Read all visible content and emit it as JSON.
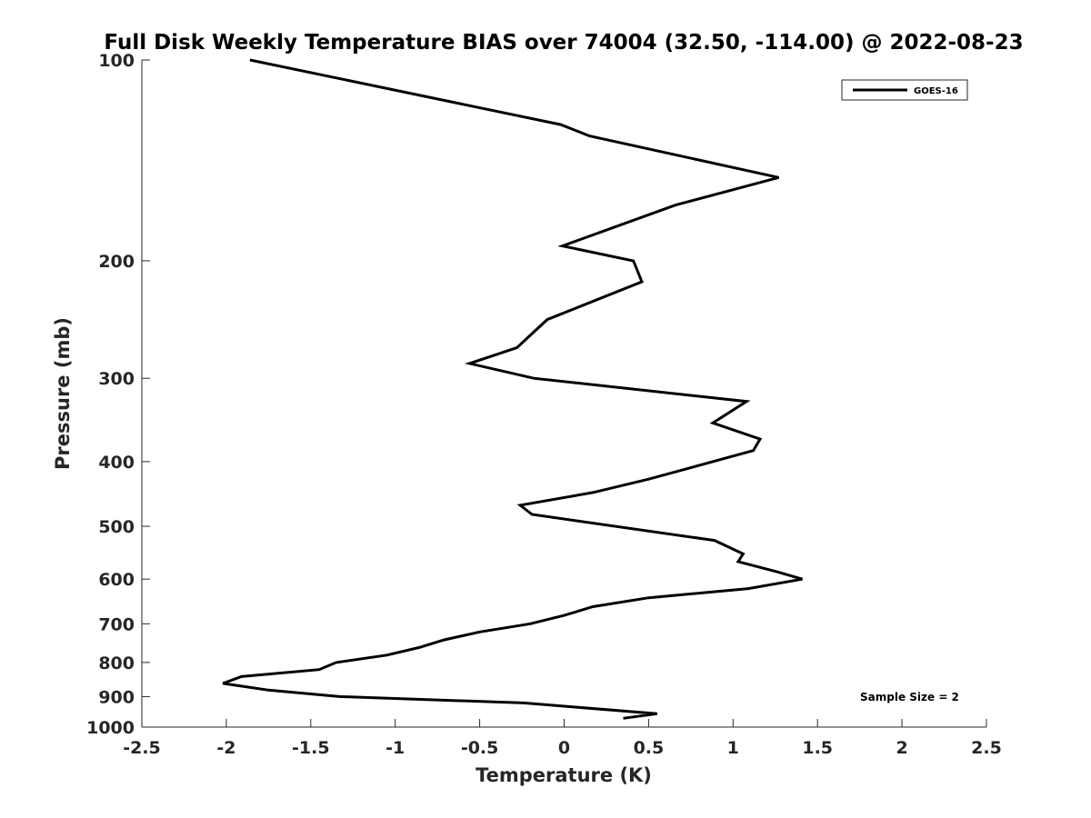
{
  "chart_data": {
    "type": "line",
    "title": "Full Disk Weekly Temperature BIAS over 74004 (32.50, -114.00) @ 2022-08-23",
    "xlabel": "Temperature (K)",
    "ylabel": "Pressure (mb)",
    "xlim": [
      -2.5,
      2.5
    ],
    "ylim": [
      100,
      1000
    ],
    "y_scale": "log",
    "y_reversed": true,
    "grid": false,
    "legend_position": "top-right",
    "x_ticks": [
      "-2.5",
      "-2",
      "-1.5",
      "-1",
      "-0.5",
      "0",
      "0.5",
      "1",
      "1.5",
      "2",
      "2.5"
    ],
    "x_tick_values": [
      -2.5,
      -2,
      -1.5,
      -1,
      -0.5,
      0,
      0.5,
      1,
      1.5,
      2,
      2.5
    ],
    "y_ticks": [
      "100",
      "200",
      "300",
      "400",
      "500",
      "600",
      "700",
      "800",
      "900",
      "1000"
    ],
    "y_tick_values": [
      100,
      200,
      300,
      400,
      500,
      600,
      700,
      800,
      900,
      1000
    ],
    "annotation": "Sample Size = 2",
    "series": [
      {
        "name": "GOES-16",
        "color": "#000000",
        "points": [
          {
            "x": -1.86,
            "p": 100
          },
          {
            "x": -0.02,
            "p": 125
          },
          {
            "x": 0.15,
            "p": 130
          },
          {
            "x": 1.27,
            "p": 150
          },
          {
            "x": 0.66,
            "p": 165
          },
          {
            "x": -0.01,
            "p": 190
          },
          {
            "x": 0.41,
            "p": 200
          },
          {
            "x": 0.46,
            "p": 215
          },
          {
            "x": -0.1,
            "p": 245
          },
          {
            "x": -0.28,
            "p": 270
          },
          {
            "x": -0.56,
            "p": 285
          },
          {
            "x": -0.18,
            "p": 300
          },
          {
            "x": 1.08,
            "p": 325
          },
          {
            "x": 0.88,
            "p": 350
          },
          {
            "x": 1.16,
            "p": 370
          },
          {
            "x": 1.12,
            "p": 385
          },
          {
            "x": 0.5,
            "p": 425
          },
          {
            "x": 0.17,
            "p": 445
          },
          {
            "x": -0.26,
            "p": 465
          },
          {
            "x": -0.19,
            "p": 480
          },
          {
            "x": 0.89,
            "p": 525
          },
          {
            "x": 1.06,
            "p": 550
          },
          {
            "x": 1.03,
            "p": 565
          },
          {
            "x": 1.26,
            "p": 585
          },
          {
            "x": 1.41,
            "p": 600
          },
          {
            "x": 1.09,
            "p": 620
          },
          {
            "x": 0.5,
            "p": 640
          },
          {
            "x": 0.17,
            "p": 660
          },
          {
            "x": 0.0,
            "p": 680
          },
          {
            "x": -0.2,
            "p": 700
          },
          {
            "x": -0.5,
            "p": 720
          },
          {
            "x": -0.71,
            "p": 740
          },
          {
            "x": -0.86,
            "p": 760
          },
          {
            "x": -1.05,
            "p": 780
          },
          {
            "x": -1.35,
            "p": 800
          },
          {
            "x": -1.45,
            "p": 820
          },
          {
            "x": -1.91,
            "p": 840
          },
          {
            "x": -2.02,
            "p": 860
          },
          {
            "x": -1.75,
            "p": 880
          },
          {
            "x": -1.33,
            "p": 900
          },
          {
            "x": -0.24,
            "p": 920
          },
          {
            "x": 0.55,
            "p": 955
          },
          {
            "x": 0.35,
            "p": 970
          }
        ]
      }
    ]
  }
}
